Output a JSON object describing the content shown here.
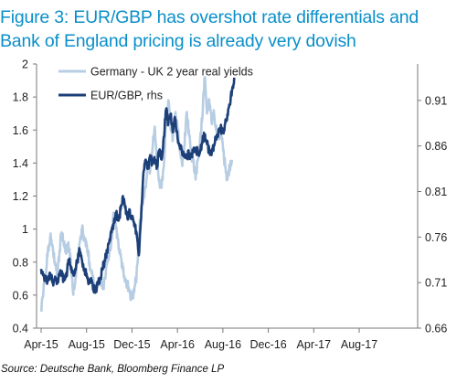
{
  "title_line1": "Figure 3:  EUR/GBP has overshot rate differentials and",
  "title_line2": "Bank of England pricing is already very dovish",
  "source": "Source: Deutsche Bank, Bloomberg Finance LP",
  "chart_data": {
    "type": "line",
    "title": "Figure 3:  EUR/GBP has overshot rate differentials and Bank of England pricing is already very dovish",
    "x_tick_labels": [
      "Apr-15",
      "Aug-15",
      "Dec-15",
      "Apr-16",
      "Aug-16",
      "Dec-16",
      "Apr-17",
      "Aug-17"
    ],
    "y_left": {
      "ylim": [
        0.4,
        2.0
      ],
      "tick_labels": [
        "0.4",
        "0.6",
        "0.8",
        "1",
        "1.2",
        "1.4",
        "1.6",
        "1.8",
        "2"
      ]
    },
    "y_right": {
      "ylim": [
        0.66,
        0.95
      ],
      "tick_labels": [
        "0.66",
        "0.71",
        "0.76",
        "0.81",
        "0.86",
        "0.91"
      ]
    },
    "legend_position": "top-left",
    "grid": false,
    "series": [
      {
        "name": "Germany - UK 2 year real yields",
        "axis": "left",
        "color": "#b7cde3",
        "points": [
          [
            0.0,
            0.5
          ],
          [
            0.2,
            0.62
          ],
          [
            0.4,
            0.72
          ],
          [
            0.6,
            0.88
          ],
          [
            0.8,
            0.95
          ],
          [
            1.0,
            0.9
          ],
          [
            1.2,
            0.8
          ],
          [
            1.4,
            0.7
          ],
          [
            1.6,
            0.85
          ],
          [
            1.8,
            0.98
          ],
          [
            2.0,
            0.9
          ],
          [
            2.2,
            0.85
          ],
          [
            2.4,
            0.92
          ],
          [
            2.6,
            0.8
          ],
          [
            2.8,
            0.62
          ],
          [
            3.0,
            0.68
          ],
          [
            3.2,
            0.8
          ],
          [
            3.4,
            0.92
          ],
          [
            3.6,
            1.0
          ],
          [
            3.8,
            0.95
          ],
          [
            4.0,
            0.9
          ],
          [
            4.2,
            0.82
          ],
          [
            4.4,
            0.75
          ],
          [
            4.6,
            0.7
          ],
          [
            4.8,
            0.64
          ],
          [
            5.0,
            0.66
          ],
          [
            5.2,
            0.7
          ],
          [
            5.4,
            0.64
          ],
          [
            5.6,
            0.7
          ],
          [
            5.8,
            0.8
          ],
          [
            6.0,
            0.85
          ],
          [
            6.2,
            0.95
          ],
          [
            6.4,
            1.1
          ],
          [
            6.6,
            1.0
          ],
          [
            6.8,
            0.92
          ],
          [
            7.0,
            0.85
          ],
          [
            7.2,
            0.75
          ],
          [
            7.4,
            0.7
          ],
          [
            7.6,
            0.66
          ],
          [
            7.8,
            0.62
          ],
          [
            8.0,
            0.58
          ],
          [
            8.2,
            0.62
          ],
          [
            8.4,
            0.72
          ],
          [
            8.6,
            0.95
          ],
          [
            8.8,
            1.1
          ],
          [
            9.0,
            1.2
          ],
          [
            9.2,
            1.25
          ],
          [
            9.4,
            1.4
          ],
          [
            9.6,
            1.35
          ],
          [
            9.8,
            1.48
          ],
          [
            10.0,
            1.62
          ],
          [
            10.2,
            1.4
          ],
          [
            10.4,
            1.3
          ],
          [
            10.6,
            1.25
          ],
          [
            10.8,
            1.38
          ],
          [
            11.0,
            1.68
          ],
          [
            11.2,
            1.78
          ],
          [
            11.4,
            1.6
          ],
          [
            11.6,
            1.55
          ],
          [
            11.8,
            1.7
          ],
          [
            12.0,
            1.62
          ],
          [
            12.2,
            1.48
          ],
          [
            12.4,
            1.4
          ],
          [
            12.6,
            1.5
          ],
          [
            12.8,
            1.7
          ],
          [
            13.0,
            1.6
          ],
          [
            13.2,
            1.44
          ],
          [
            13.4,
            1.42
          ],
          [
            13.6,
            1.3
          ],
          [
            13.8,
            1.42
          ],
          [
            14.0,
            1.55
          ],
          [
            14.2,
            1.68
          ],
          [
            14.4,
            1.92
          ],
          [
            14.6,
            1.7
          ],
          [
            14.8,
            1.78
          ],
          [
            15.0,
            1.65
          ],
          [
            15.2,
            1.72
          ],
          [
            15.4,
            1.6
          ],
          [
            15.6,
            1.55
          ],
          [
            15.8,
            1.62
          ],
          [
            16.0,
            1.5
          ],
          [
            16.2,
            1.38
          ],
          [
            16.4,
            1.3
          ],
          [
            16.6,
            1.38
          ],
          [
            16.8,
            1.42
          ]
        ]
      },
      {
        "name": "EUR/GBP, rhs",
        "axis": "right",
        "color": "#1c3f78",
        "points": [
          [
            0.0,
            0.725
          ],
          [
            0.2,
            0.718
          ],
          [
            0.4,
            0.715
          ],
          [
            0.6,
            0.712
          ],
          [
            0.8,
            0.72
          ],
          [
            1.0,
            0.71
          ],
          [
            1.2,
            0.715
          ],
          [
            1.4,
            0.712
          ],
          [
            1.6,
            0.718
          ],
          [
            1.8,
            0.722
          ],
          [
            2.0,
            0.712
          ],
          [
            2.2,
            0.716
          ],
          [
            2.4,
            0.735
          ],
          [
            2.6,
            0.728
          ],
          [
            2.8,
            0.72
          ],
          [
            3.0,
            0.725
          ],
          [
            3.2,
            0.735
          ],
          [
            3.4,
            0.745
          ],
          [
            3.6,
            0.735
          ],
          [
            3.8,
            0.725
          ],
          [
            4.0,
            0.72
          ],
          [
            4.2,
            0.712
          ],
          [
            4.4,
            0.715
          ],
          [
            4.6,
            0.705
          ],
          [
            4.8,
            0.7
          ],
          [
            5.0,
            0.708
          ],
          [
            5.2,
            0.715
          ],
          [
            5.4,
            0.725
          ],
          [
            5.6,
            0.735
          ],
          [
            5.8,
            0.745
          ],
          [
            6.0,
            0.755
          ],
          [
            6.2,
            0.765
          ],
          [
            6.4,
            0.775
          ],
          [
            6.6,
            0.785
          ],
          [
            6.8,
            0.778
          ],
          [
            7.0,
            0.79
          ],
          [
            7.2,
            0.805
          ],
          [
            7.4,
            0.792
          ],
          [
            7.6,
            0.78
          ],
          [
            7.8,
            0.79
          ],
          [
            8.0,
            0.78
          ],
          [
            8.2,
            0.772
          ],
          [
            8.4,
            0.765
          ],
          [
            8.6,
            0.74
          ],
          [
            8.8,
            0.78
          ],
          [
            9.0,
            0.83
          ],
          [
            9.2,
            0.845
          ],
          [
            9.4,
            0.835
          ],
          [
            9.6,
            0.85
          ],
          [
            9.8,
            0.84
          ],
          [
            10.0,
            0.845
          ],
          [
            10.2,
            0.838
          ],
          [
            10.4,
            0.855
          ],
          [
            10.6,
            0.845
          ],
          [
            10.8,
            0.87
          ],
          [
            11.0,
            0.9
          ],
          [
            11.2,
            0.885
          ],
          [
            11.4,
            0.895
          ],
          [
            11.6,
            0.875
          ],
          [
            11.8,
            0.89
          ],
          [
            12.0,
            0.87
          ],
          [
            12.2,
            0.86
          ],
          [
            12.4,
            0.855
          ],
          [
            12.6,
            0.85
          ],
          [
            12.8,
            0.848
          ],
          [
            13.0,
            0.852
          ],
          [
            13.2,
            0.848
          ],
          [
            13.4,
            0.855
          ],
          [
            13.6,
            0.858
          ],
          [
            13.8,
            0.852
          ],
          [
            14.0,
            0.855
          ],
          [
            14.2,
            0.865
          ],
          [
            14.4,
            0.872
          ],
          [
            14.6,
            0.862
          ],
          [
            14.8,
            0.855
          ],
          [
            15.0,
            0.85
          ],
          [
            15.2,
            0.86
          ],
          [
            15.4,
            0.87
          ],
          [
            15.6,
            0.875
          ],
          [
            15.8,
            0.88
          ],
          [
            16.0,
            0.875
          ],
          [
            16.2,
            0.885
          ],
          [
            16.4,
            0.895
          ],
          [
            16.6,
            0.905
          ],
          [
            16.8,
            0.92
          ],
          [
            17.0,
            0.935
          ]
        ]
      }
    ]
  }
}
